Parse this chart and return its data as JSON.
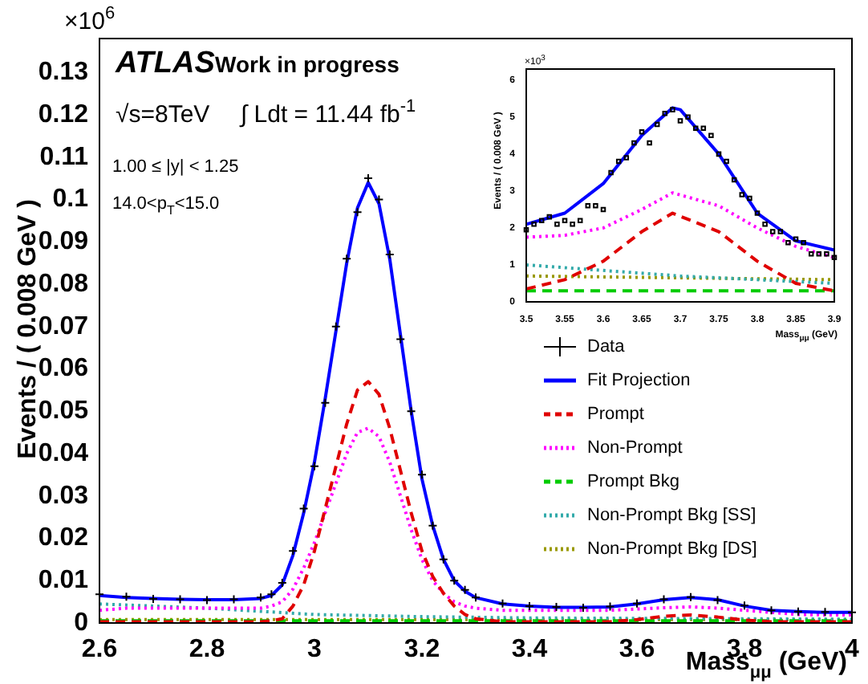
{
  "chart_data": [
    {
      "type": "line",
      "xlabel": "Mass$_{μμ}$ (GeV)",
      "ylabel": "Events / ( 0.008 GeV )",
      "annotations": [
        "×10$^{6}$",
        "ATLAS",
        "Work in progress",
        "√s=8TeV",
        "∫ Ldt = 11.44 fb$^{-1}$",
        "1.00 ≤ |y| < 1.25",
        "14.0<p$_{T}$<15.0"
      ],
      "x": [
        2.6,
        2.65,
        2.7,
        2.75,
        2.8,
        2.85,
        2.9,
        2.92,
        2.94,
        2.96,
        2.98,
        3.0,
        3.02,
        3.04,
        3.06,
        3.08,
        3.1,
        3.12,
        3.14,
        3.16,
        3.18,
        3.2,
        3.22,
        3.24,
        3.26,
        3.28,
        3.3,
        3.35,
        3.4,
        3.45,
        3.5,
        3.55,
        3.6,
        3.65,
        3.7,
        3.75,
        3.8,
        3.85,
        3.9,
        3.95,
        4.0
      ],
      "series": [
        {
          "name": "Data",
          "type": "scatter",
          "marker": "cross",
          "color": "#000000",
          "values": [
            0.0068,
            0.0062,
            0.0057,
            0.0056,
            0.0054,
            0.0056,
            0.006,
            0.0068,
            0.0095,
            0.017,
            0.027,
            0.037,
            0.052,
            0.07,
            0.086,
            0.097,
            0.105,
            0.1,
            0.087,
            0.067,
            0.05,
            0.035,
            0.023,
            0.015,
            0.01,
            0.0078,
            0.006,
            0.0046,
            0.004,
            0.0038,
            0.0036,
            0.0039,
            0.0046,
            0.0056,
            0.0061,
            0.0054,
            0.0041,
            0.003,
            0.0027,
            0.0026,
            0.0025
          ]
        },
        {
          "name": "Fit Projection",
          "line_style": "solid",
          "color": "#0000ff",
          "values": [
            0.0065,
            0.006,
            0.0058,
            0.0056,
            0.0055,
            0.0055,
            0.0058,
            0.0065,
            0.009,
            0.016,
            0.026,
            0.038,
            0.053,
            0.069,
            0.085,
            0.098,
            0.104,
            0.099,
            0.086,
            0.068,
            0.05,
            0.034,
            0.023,
            0.015,
            0.01,
            0.0075,
            0.006,
            0.0045,
            0.004,
            0.0037,
            0.0037,
            0.0038,
            0.0045,
            0.0055,
            0.006,
            0.0055,
            0.004,
            0.003,
            0.0027,
            0.0025,
            0.0025
          ]
        },
        {
          "name": "Prompt",
          "line_style": "dashed",
          "color": "#e00000",
          "values": [
            0.0003,
            0.0003,
            0.0003,
            0.0003,
            0.0003,
            0.0003,
            0.0003,
            0.0005,
            0.001,
            0.004,
            0.009,
            0.017,
            0.027,
            0.037,
            0.047,
            0.055,
            0.057,
            0.054,
            0.046,
            0.036,
            0.026,
            0.017,
            0.011,
            0.007,
            0.004,
            0.002,
            0.001,
            0.0003,
            0.0003,
            0.0003,
            0.0003,
            0.0003,
            0.0008,
            0.0016,
            0.0019,
            0.0014,
            0.0007,
            0.0003,
            0.0003,
            0.0003,
            0.0003
          ]
        },
        {
          "name": "Non-Prompt",
          "line_style": "dotted",
          "color": "#ff00ff",
          "values": [
            0.003,
            0.0035,
            0.0035,
            0.0035,
            0.0035,
            0.0035,
            0.0035,
            0.004,
            0.005,
            0.008,
            0.013,
            0.019,
            0.026,
            0.033,
            0.04,
            0.045,
            0.046,
            0.044,
            0.038,
            0.03,
            0.022,
            0.015,
            0.01,
            0.007,
            0.005,
            0.004,
            0.0035,
            0.003,
            0.003,
            0.003,
            0.003,
            0.003,
            0.0033,
            0.0036,
            0.0038,
            0.0035,
            0.003,
            0.0025,
            0.002,
            0.0019,
            0.0019
          ]
        },
        {
          "name": "Prompt Bkg",
          "line_style": "dashed",
          "color": "#00cc00",
          "x": [
            2.6,
            4.0
          ],
          "values": [
            0.0005,
            0.0005
          ]
        },
        {
          "name": "Non-Prompt Bkg [SS]",
          "line_style": "dotted",
          "color": "#33aaaa",
          "x": [
            2.6,
            2.8,
            3.0,
            3.2,
            3.4,
            3.6,
            3.8,
            4.0
          ],
          "values": [
            0.0045,
            0.0035,
            0.002,
            0.0015,
            0.0012,
            0.0011,
            0.001,
            0.0009
          ]
        },
        {
          "name": "Non-Prompt Bkg [DS]",
          "line_style": "dotted",
          "color": "#999900",
          "x": [
            2.6,
            4.0
          ],
          "values": [
            0.0008,
            0.0008
          ]
        }
      ],
      "xlim": [
        2.6,
        4.0
      ],
      "xticks": [
        2.6,
        2.8,
        3,
        3.2,
        3.4,
        3.6,
        3.8,
        4
      ],
      "ylim": [
        0,
        0.138
      ],
      "yticks": [
        0,
        0.01,
        0.02,
        0.03,
        0.04,
        0.05,
        0.06,
        0.07,
        0.08,
        0.09,
        0.1,
        0.11,
        0.12,
        0.13
      ],
      "grid": false,
      "legend": "right"
    },
    {
      "type": "line",
      "xlabel": "Mass$_{μμ}$ (GeV)",
      "ylabel": "Events / ( 0.008 GeV )",
      "annotations": [
        "×10$^{3}$"
      ],
      "x": [
        3.5,
        3.55,
        3.6,
        3.65,
        3.69,
        3.75,
        3.8,
        3.85,
        3.9
      ],
      "series": [
        {
          "type": "scatter",
          "marker": "square",
          "color": "#000000",
          "x": [
            3.5,
            3.51,
            3.52,
            3.53,
            3.54,
            3.55,
            3.56,
            3.57,
            3.58,
            3.59,
            3.6,
            3.61,
            3.62,
            3.63,
            3.64,
            3.65,
            3.66,
            3.67,
            3.68,
            3.69,
            3.7,
            3.71,
            3.72,
            3.73,
            3.74,
            3.75,
            3.76,
            3.77,
            3.78,
            3.79,
            3.8,
            3.81,
            3.82,
            3.83,
            3.84,
            3.85,
            3.86,
            3.87,
            3.88,
            3.89,
            3.9
          ],
          "values": [
            1.95,
            2.1,
            2.2,
            2.3,
            2.1,
            2.2,
            2.1,
            2.2,
            2.6,
            2.6,
            2.5,
            3.5,
            3.8,
            3.9,
            4.3,
            4.6,
            4.3,
            4.8,
            5.1,
            5.2,
            4.9,
            5.0,
            4.7,
            4.7,
            4.5,
            4.0,
            3.8,
            3.3,
            2.9,
            2.8,
            2.4,
            2.1,
            1.9,
            1.9,
            1.6,
            1.7,
            1.6,
            1.3,
            1.3,
            1.3,
            1.2
          ]
        },
        {
          "line_style": "solid",
          "color": "#0000ff",
          "x": [
            3.5,
            3.55,
            3.6,
            3.65,
            3.69,
            3.7,
            3.75,
            3.8,
            3.85,
            3.9
          ],
          "values": [
            2.1,
            2.4,
            3.2,
            4.5,
            5.25,
            5.2,
            4.0,
            2.4,
            1.65,
            1.4
          ]
        },
        {
          "line_style": "dashed",
          "color": "#e00000",
          "values": [
            0.35,
            0.6,
            1.1,
            1.9,
            2.4,
            1.9,
            1.1,
            0.5,
            0.3
          ]
        },
        {
          "line_style": "dotted",
          "color": "#ff00ff",
          "values": [
            1.75,
            1.8,
            2.0,
            2.5,
            2.95,
            2.6,
            2.0,
            1.5,
            1.2
          ]
        },
        {
          "line_style": "dashed",
          "color": "#00cc00",
          "x": [
            3.5,
            3.9
          ],
          "values": [
            0.3,
            0.3
          ]
        },
        {
          "line_style": "dotted",
          "color": "#33aaaa",
          "x": [
            3.5,
            3.7,
            3.9
          ],
          "values": [
            1.0,
            0.7,
            0.5
          ]
        },
        {
          "line_style": "dotted",
          "color": "#999900",
          "x": [
            3.5,
            3.9
          ],
          "values": [
            0.7,
            0.6
          ]
        }
      ],
      "xlim": [
        3.5,
        3.9
      ],
      "xticks": [
        3.5,
        3.55,
        3.6,
        3.65,
        3.7,
        3.75,
        3.8,
        3.85,
        3.9
      ],
      "ylim": [
        0,
        6.3
      ],
      "yticks": [
        0,
        1,
        2,
        3,
        4,
        5,
        6
      ],
      "grid": false
    }
  ]
}
